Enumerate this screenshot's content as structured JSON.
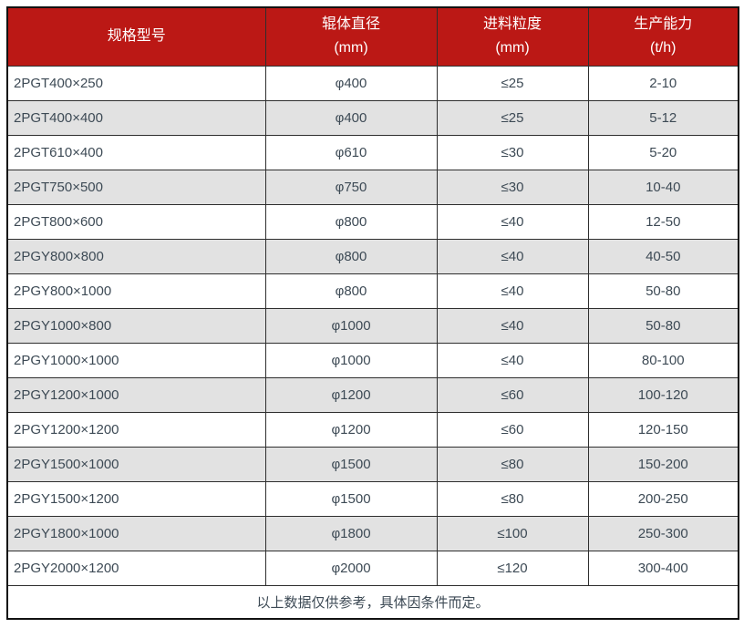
{
  "table": {
    "columns": [
      {
        "title": "规格型号",
        "unit": ""
      },
      {
        "title": "辊体直径",
        "unit": "(mm)"
      },
      {
        "title": "进料粒度",
        "unit": "(mm)"
      },
      {
        "title": "生产能力",
        "unit": "(t/h)"
      }
    ],
    "rows": [
      [
        "2PGT400×250",
        "φ400",
        "≤25",
        "2-10"
      ],
      [
        "2PGT400×400",
        "φ400",
        "≤25",
        "5-12"
      ],
      [
        "2PGT610×400",
        "φ610",
        "≤30",
        "5-20"
      ],
      [
        "2PGT750×500",
        "φ750",
        "≤30",
        "10-40"
      ],
      [
        "2PGT800×600",
        "φ800",
        "≤40",
        "12-50"
      ],
      [
        "2PGY800×800",
        "φ800",
        "≤40",
        "40-50"
      ],
      [
        "2PGY800×1000",
        "φ800",
        "≤40",
        "50-80"
      ],
      [
        "2PGY1000×800",
        "φ1000",
        "≤40",
        "50-80"
      ],
      [
        "2PGY1000×1000",
        "φ1000",
        "≤40",
        "80-100"
      ],
      [
        "2PGY1200×1000",
        "φ1200",
        "≤60",
        "100-120"
      ],
      [
        "2PGY1200×1200",
        "φ1200",
        "≤60",
        "120-150"
      ],
      [
        "2PGY1500×1000",
        "φ1500",
        "≤80",
        "150-200"
      ],
      [
        "2PGY1500×1200",
        "φ1500",
        "≤80",
        "200-250"
      ],
      [
        "2PGY1800×1000",
        "φ1800",
        "≤100",
        "250-300"
      ],
      [
        "2PGY2000×1200",
        "φ2000",
        "≤120",
        "300-400"
      ]
    ],
    "footnote": "以上数据仅供参考，具体因条件而定。"
  },
  "colors": {
    "header_bg": "#bb1815",
    "header_text": "#ffffff",
    "row_alt_bg": "#e2e2e2",
    "outer_border": "#111111",
    "inner_border": "#2e2e2e",
    "body_text": "#3d4a55"
  }
}
